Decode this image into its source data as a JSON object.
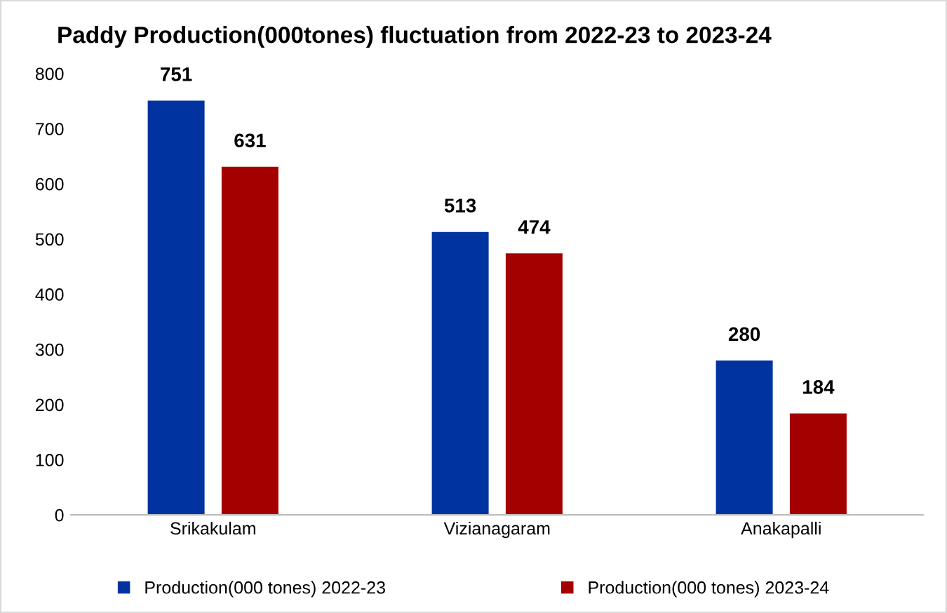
{
  "chart_data": {
    "type": "bar",
    "title": "Paddy Production(000tones) fluctuation from 2022-23 to 2023-24",
    "categories": [
      "Srikakulam",
      "Vizianagaram",
      "Anakapalli"
    ],
    "series": [
      {
        "name": "Production(000 tones) 2022-23",
        "color": "#0033a0",
        "values": [
          751,
          513,
          280
        ]
      },
      {
        "name": "Production(000 tones) 2023-24",
        "color": "#a50000",
        "values": [
          631,
          474,
          184
        ]
      }
    ],
    "ylim": [
      0,
      800
    ],
    "yticks": [
      0,
      100,
      200,
      300,
      400,
      500,
      600,
      700,
      800
    ],
    "grid": false,
    "legend": "bottom",
    "data_labels": true
  }
}
